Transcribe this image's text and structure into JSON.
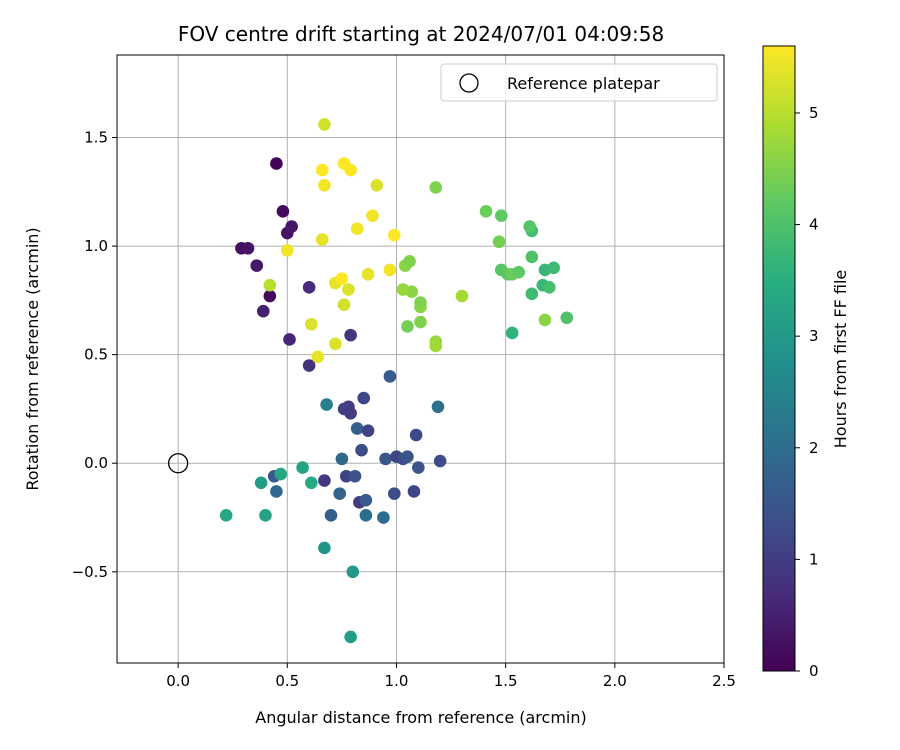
{
  "chart_data": {
    "type": "scatter",
    "title": "FOV centre drift starting at 2024/07/01 04:09:58",
    "xlabel": "Angular distance from reference (arcmin)",
    "ylabel": "Rotation from reference (arcmin)",
    "xlim": [
      -0.28,
      2.5
    ],
    "ylim": [
      -0.92,
      1.88
    ],
    "xticks": [
      0.0,
      0.5,
      1.0,
      1.5,
      2.0,
      2.5
    ],
    "xtick_labels": [
      "0.0",
      "0.5",
      "1.0",
      "1.5",
      "2.0",
      "2.5"
    ],
    "yticks": [
      -0.5,
      0.0,
      0.5,
      1.0,
      1.5
    ],
    "ytick_labels": [
      "−0.5",
      "0.0",
      "0.5",
      "1.0",
      "1.5"
    ],
    "grid": true,
    "colormap": "viridis",
    "colorbar": {
      "label": "Hours from first FF file",
      "range": [
        0,
        5.6
      ],
      "ticks": [
        0,
        1,
        2,
        3,
        4,
        5
      ],
      "tick_labels": [
        "0",
        "1",
        "2",
        "3",
        "4",
        "5"
      ]
    },
    "legend": {
      "position": "top-right",
      "entries": [
        "Reference platepar"
      ]
    },
    "reference_point": {
      "x": 0.0,
      "y": 0.0,
      "marker": "open-circle",
      "color": "#000000"
    },
    "series": [
      {
        "points": [
          {
            "x": 0.45,
            "y": 1.38,
            "h": 0.05
          },
          {
            "x": 0.48,
            "y": 1.16,
            "h": 0.15
          },
          {
            "x": 0.5,
            "y": 1.06,
            "h": 0.25
          },
          {
            "x": 0.52,
            "y": 1.09,
            "h": 0.35
          },
          {
            "x": 0.29,
            "y": 0.99,
            "h": 0.2
          },
          {
            "x": 0.32,
            "y": 0.99,
            "h": 0.3
          },
          {
            "x": 0.36,
            "y": 0.91,
            "h": 0.4
          },
          {
            "x": 0.42,
            "y": 0.77,
            "h": 0.1
          },
          {
            "x": 0.39,
            "y": 0.7,
            "h": 0.5
          },
          {
            "x": 0.51,
            "y": 0.57,
            "h": 0.6
          },
          {
            "x": 0.6,
            "y": 0.81,
            "h": 0.7
          },
          {
            "x": 0.6,
            "y": 0.45,
            "h": 0.8
          },
          {
            "x": 0.79,
            "y": 0.59,
            "h": 0.85
          },
          {
            "x": 0.97,
            "y": 0.4,
            "h": 1.6
          },
          {
            "x": 0.85,
            "y": 0.3,
            "h": 1.2
          },
          {
            "x": 0.78,
            "y": 0.26,
            "h": 0.95
          },
          {
            "x": 0.76,
            "y": 0.25,
            "h": 1.05
          },
          {
            "x": 0.79,
            "y": 0.23,
            "h": 1.0
          },
          {
            "x": 0.82,
            "y": 0.16,
            "h": 1.7
          },
          {
            "x": 0.87,
            "y": 0.15,
            "h": 1.1
          },
          {
            "x": 0.84,
            "y": 0.06,
            "h": 1.3
          },
          {
            "x": 0.75,
            "y": 0.02,
            "h": 1.9
          },
          {
            "x": 0.95,
            "y": 0.02,
            "h": 1.5
          },
          {
            "x": 1.0,
            "y": 0.03,
            "h": 1.15
          },
          {
            "x": 1.03,
            "y": 0.02,
            "h": 1.35
          },
          {
            "x": 1.05,
            "y": 0.03,
            "h": 1.45
          },
          {
            "x": 1.09,
            "y": 0.13,
            "h": 1.25
          },
          {
            "x": 1.1,
            "y": -0.02,
            "h": 1.4
          },
          {
            "x": 1.2,
            "y": 0.01,
            "h": 1.3
          },
          {
            "x": 1.19,
            "y": 0.26,
            "h": 2.1
          },
          {
            "x": 0.68,
            "y": 0.27,
            "h": 2.4
          },
          {
            "x": 0.77,
            "y": -0.06,
            "h": 1.1
          },
          {
            "x": 0.81,
            "y": -0.06,
            "h": 1.4
          },
          {
            "x": 0.67,
            "y": -0.08,
            "h": 0.9
          },
          {
            "x": 0.74,
            "y": -0.14,
            "h": 1.8
          },
          {
            "x": 0.83,
            "y": -0.18,
            "h": 1.0
          },
          {
            "x": 0.86,
            "y": -0.17,
            "h": 1.6
          },
          {
            "x": 0.99,
            "y": -0.14,
            "h": 1.3
          },
          {
            "x": 1.08,
            "y": -0.13,
            "h": 1.2
          },
          {
            "x": 0.86,
            "y": -0.24,
            "h": 2.0
          },
          {
            "x": 0.94,
            "y": -0.25,
            "h": 2.0
          },
          {
            "x": 0.7,
            "y": -0.24,
            "h": 1.7
          },
          {
            "x": 0.44,
            "y": -0.06,
            "h": 1.6
          },
          {
            "x": 0.45,
            "y": -0.13,
            "h": 1.9
          },
          {
            "x": 0.47,
            "y": -0.05,
            "h": 3.3
          },
          {
            "x": 0.57,
            "y": -0.02,
            "h": 3.2
          },
          {
            "x": 0.61,
            "y": -0.09,
            "h": 3.4
          },
          {
            "x": 0.38,
            "y": -0.09,
            "h": 3.1
          },
          {
            "x": 0.22,
            "y": -0.24,
            "h": 3.3
          },
          {
            "x": 0.4,
            "y": -0.24,
            "h": 3.2
          },
          {
            "x": 0.67,
            "y": -0.39,
            "h": 2.9
          },
          {
            "x": 0.8,
            "y": -0.5,
            "h": 3.0
          },
          {
            "x": 0.79,
            "y": -0.8,
            "h": 3.1
          },
          {
            "x": 1.53,
            "y": 0.6,
            "h": 3.6
          },
          {
            "x": 1.62,
            "y": 0.78,
            "h": 3.8
          },
          {
            "x": 1.67,
            "y": 0.82,
            "h": 3.7
          },
          {
            "x": 1.7,
            "y": 0.81,
            "h": 3.9
          },
          {
            "x": 1.68,
            "y": 0.89,
            "h": 3.7
          },
          {
            "x": 1.72,
            "y": 0.9,
            "h": 3.8
          },
          {
            "x": 1.62,
            "y": 0.95,
            "h": 4.0
          },
          {
            "x": 1.62,
            "y": 1.07,
            "h": 3.9
          },
          {
            "x": 1.61,
            "y": 1.09,
            "h": 4.1
          },
          {
            "x": 1.48,
            "y": 1.14,
            "h": 4.2
          },
          {
            "x": 1.41,
            "y": 1.16,
            "h": 4.3
          },
          {
            "x": 1.47,
            "y": 1.02,
            "h": 4.4
          },
          {
            "x": 1.48,
            "y": 0.89,
            "h": 4.1
          },
          {
            "x": 1.51,
            "y": 0.87,
            "h": 4.2
          },
          {
            "x": 1.53,
            "y": 0.87,
            "h": 4.3
          },
          {
            "x": 1.56,
            "y": 0.88,
            "h": 4.2
          },
          {
            "x": 1.78,
            "y": 0.67,
            "h": 4.0
          },
          {
            "x": 1.68,
            "y": 0.66,
            "h": 4.6
          },
          {
            "x": 1.18,
            "y": 1.27,
            "h": 4.5
          },
          {
            "x": 1.3,
            "y": 0.77,
            "h": 4.8
          },
          {
            "x": 1.05,
            "y": 0.63,
            "h": 4.4
          },
          {
            "x": 1.11,
            "y": 0.65,
            "h": 4.5
          },
          {
            "x": 1.11,
            "y": 0.72,
            "h": 4.6
          },
          {
            "x": 1.11,
            "y": 0.74,
            "h": 4.5
          },
          {
            "x": 1.07,
            "y": 0.79,
            "h": 4.6
          },
          {
            "x": 1.03,
            "y": 0.8,
            "h": 4.7
          },
          {
            "x": 1.04,
            "y": 0.91,
            "h": 4.6
          },
          {
            "x": 1.06,
            "y": 0.93,
            "h": 4.5
          },
          {
            "x": 1.18,
            "y": 0.56,
            "h": 4.7
          },
          {
            "x": 1.18,
            "y": 0.54,
            "h": 4.8
          },
          {
            "x": 0.42,
            "y": 0.82,
            "h": 5.0
          },
          {
            "x": 0.5,
            "y": 0.98,
            "h": 5.5
          },
          {
            "x": 0.61,
            "y": 0.64,
            "h": 5.3
          },
          {
            "x": 0.64,
            "y": 0.49,
            "h": 5.4
          },
          {
            "x": 0.72,
            "y": 0.55,
            "h": 5.3
          },
          {
            "x": 0.72,
            "y": 0.83,
            "h": 5.4
          },
          {
            "x": 0.75,
            "y": 0.85,
            "h": 5.6
          },
          {
            "x": 0.76,
            "y": 0.73,
            "h": 5.2
          },
          {
            "x": 0.78,
            "y": 0.8,
            "h": 5.3
          },
          {
            "x": 0.87,
            "y": 0.87,
            "h": 5.4
          },
          {
            "x": 0.97,
            "y": 0.89,
            "h": 5.5
          },
          {
            "x": 0.66,
            "y": 1.03,
            "h": 5.4
          },
          {
            "x": 0.82,
            "y": 1.08,
            "h": 5.5
          },
          {
            "x": 0.99,
            "y": 1.05,
            "h": 5.6
          },
          {
            "x": 0.89,
            "y": 1.14,
            "h": 5.5
          },
          {
            "x": 0.67,
            "y": 1.28,
            "h": 5.5
          },
          {
            "x": 0.66,
            "y": 1.35,
            "h": 5.6
          },
          {
            "x": 0.76,
            "y": 1.38,
            "h": 5.6
          },
          {
            "x": 0.79,
            "y": 1.35,
            "h": 5.6
          },
          {
            "x": 0.91,
            "y": 1.28,
            "h": 5.3
          },
          {
            "x": 0.67,
            "y": 1.56,
            "h": 5.2
          }
        ]
      }
    ]
  }
}
